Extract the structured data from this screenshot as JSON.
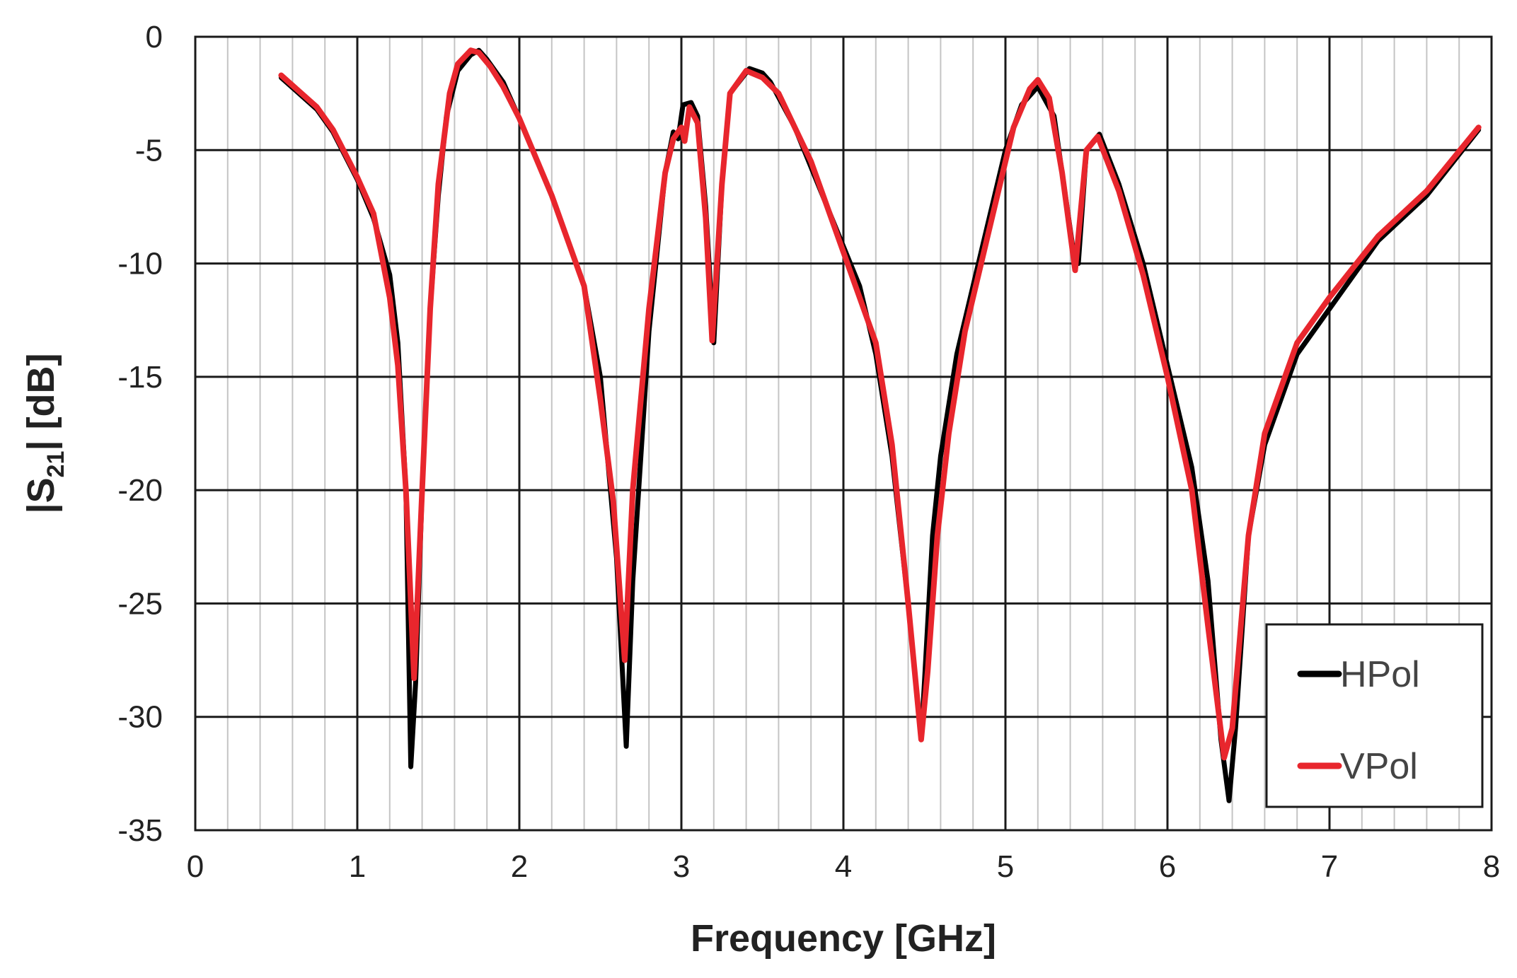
{
  "chart_data": {
    "type": "line",
    "xlabel": "Frequency [GHz]",
    "ylabel_main": "|S",
    "ylabel_sub": "21",
    "ylabel_rest": "| [dB]",
    "xlim": [
      0,
      8
    ],
    "ylim": [
      -35,
      0
    ],
    "x_ticks": [
      0,
      1,
      2,
      3,
      4,
      5,
      6,
      7,
      8
    ],
    "y_ticks": [
      0,
      -5,
      -10,
      -15,
      -20,
      -25,
      -30,
      -35
    ],
    "x_tick_labels": [
      "0",
      "1",
      "2",
      "3",
      "4",
      "5",
      "6",
      "7",
      "8"
    ],
    "y_tick_labels": [
      "0",
      "-5",
      "-10",
      "-15",
      "-20",
      "-25",
      "-30",
      "-35"
    ],
    "minor_x_step": 0.2,
    "grid": true,
    "legend_position": "bottom-right",
    "series": [
      {
        "name": "HPol",
        "color": "#000000",
        "points": [
          [
            0.53,
            -1.8
          ],
          [
            0.75,
            -3.2
          ],
          [
            0.85,
            -4.2
          ],
          [
            1.0,
            -6.3
          ],
          [
            1.1,
            -8.0
          ],
          [
            1.2,
            -10.5
          ],
          [
            1.25,
            -13.5
          ],
          [
            1.3,
            -20
          ],
          [
            1.33,
            -32.2
          ],
          [
            1.36,
            -28.5
          ],
          [
            1.4,
            -20
          ],
          [
            1.45,
            -12
          ],
          [
            1.5,
            -7
          ],
          [
            1.55,
            -3.5
          ],
          [
            1.62,
            -1.5
          ],
          [
            1.7,
            -0.8
          ],
          [
            1.75,
            -0.6
          ],
          [
            1.8,
            -1.0
          ],
          [
            1.9,
            -2.0
          ],
          [
            2.0,
            -3.6
          ],
          [
            2.2,
            -7.0
          ],
          [
            2.4,
            -11.0
          ],
          [
            2.5,
            -15
          ],
          [
            2.55,
            -19
          ],
          [
            2.6,
            -23
          ],
          [
            2.66,
            -31.3
          ],
          [
            2.7,
            -24
          ],
          [
            2.8,
            -13
          ],
          [
            2.9,
            -6
          ],
          [
            2.95,
            -4.2
          ],
          [
            2.98,
            -4.5
          ],
          [
            3.01,
            -3.0
          ],
          [
            3.06,
            -2.9
          ],
          [
            3.1,
            -3.5
          ],
          [
            3.15,
            -7.5
          ],
          [
            3.2,
            -13.5
          ],
          [
            3.25,
            -6.5
          ],
          [
            3.3,
            -2.5
          ],
          [
            3.42,
            -1.4
          ],
          [
            3.5,
            -1.6
          ],
          [
            3.55,
            -2.0
          ],
          [
            3.7,
            -4.0
          ],
          [
            3.9,
            -7.5
          ],
          [
            4.1,
            -11.0
          ],
          [
            4.2,
            -14.0
          ],
          [
            4.3,
            -18.5
          ],
          [
            4.4,
            -25
          ],
          [
            4.48,
            -31.0
          ],
          [
            4.5,
            -28.5
          ],
          [
            4.55,
            -22
          ],
          [
            4.6,
            -18.5
          ],
          [
            4.7,
            -14.0
          ],
          [
            4.85,
            -9.5
          ],
          [
            5.0,
            -5.0
          ],
          [
            5.1,
            -3.0
          ],
          [
            5.2,
            -2.2
          ],
          [
            5.3,
            -3.5
          ],
          [
            5.35,
            -6.0
          ],
          [
            5.42,
            -9.5
          ],
          [
            5.45,
            -10.0
          ],
          [
            5.5,
            -5.0
          ],
          [
            5.58,
            -4.3
          ],
          [
            5.7,
            -6.5
          ],
          [
            5.85,
            -10.0
          ],
          [
            6.0,
            -14.5
          ],
          [
            6.15,
            -19.0
          ],
          [
            6.25,
            -24.0
          ],
          [
            6.33,
            -31.0
          ],
          [
            6.38,
            -33.7
          ],
          [
            6.42,
            -30.5
          ],
          [
            6.5,
            -22.0
          ],
          [
            6.6,
            -18.0
          ],
          [
            6.8,
            -14.0
          ],
          [
            7.0,
            -12.0
          ],
          [
            7.3,
            -9.0
          ],
          [
            7.6,
            -7.0
          ],
          [
            7.92,
            -4.1
          ]
        ]
      },
      {
        "name": "VPol",
        "color": "#e8262d",
        "points": [
          [
            0.53,
            -1.7
          ],
          [
            0.75,
            -3.1
          ],
          [
            0.85,
            -4.1
          ],
          [
            1.0,
            -6.2
          ],
          [
            1.1,
            -7.8
          ],
          [
            1.2,
            -11.5
          ],
          [
            1.25,
            -14.5
          ],
          [
            1.3,
            -20
          ],
          [
            1.35,
            -28.3
          ],
          [
            1.4,
            -20
          ],
          [
            1.45,
            -12
          ],
          [
            1.5,
            -6.5
          ],
          [
            1.57,
            -2.5
          ],
          [
            1.62,
            -1.2
          ],
          [
            1.7,
            -0.6
          ],
          [
            1.75,
            -0.7
          ],
          [
            1.82,
            -1.3
          ],
          [
            1.9,
            -2.2
          ],
          [
            2.0,
            -3.6
          ],
          [
            2.2,
            -7.0
          ],
          [
            2.4,
            -11.0
          ],
          [
            2.5,
            -16.0
          ],
          [
            2.58,
            -20.5
          ],
          [
            2.65,
            -27.5
          ],
          [
            2.7,
            -20
          ],
          [
            2.8,
            -12
          ],
          [
            2.9,
            -6
          ],
          [
            2.95,
            -4.5
          ],
          [
            3.0,
            -4.0
          ],
          [
            3.02,
            -4.6
          ],
          [
            3.05,
            -3.1
          ],
          [
            3.1,
            -3.8
          ],
          [
            3.15,
            -8.0
          ],
          [
            3.19,
            -13.4
          ],
          [
            3.25,
            -6.5
          ],
          [
            3.3,
            -2.5
          ],
          [
            3.4,
            -1.5
          ],
          [
            3.5,
            -1.8
          ],
          [
            3.6,
            -2.5
          ],
          [
            3.8,
            -5.5
          ],
          [
            4.0,
            -9.5
          ],
          [
            4.2,
            -13.5
          ],
          [
            4.3,
            -18.0
          ],
          [
            4.4,
            -25.0
          ],
          [
            4.48,
            -31.0
          ],
          [
            4.52,
            -28.0
          ],
          [
            4.58,
            -22.0
          ],
          [
            4.65,
            -17.5
          ],
          [
            4.75,
            -13.0
          ],
          [
            4.9,
            -8.5
          ],
          [
            5.05,
            -4.0
          ],
          [
            5.15,
            -2.3
          ],
          [
            5.2,
            -1.9
          ],
          [
            5.27,
            -2.7
          ],
          [
            5.35,
            -6.0
          ],
          [
            5.43,
            -10.3
          ],
          [
            5.5,
            -5.0
          ],
          [
            5.57,
            -4.4
          ],
          [
            5.7,
            -6.8
          ],
          [
            5.85,
            -10.5
          ],
          [
            6.0,
            -15.0
          ],
          [
            6.15,
            -20.0
          ],
          [
            6.25,
            -26.0
          ],
          [
            6.35,
            -31.8
          ],
          [
            6.4,
            -30.5
          ],
          [
            6.5,
            -22.0
          ],
          [
            6.6,
            -17.5
          ],
          [
            6.8,
            -13.5
          ],
          [
            7.0,
            -11.5
          ],
          [
            7.3,
            -8.8
          ],
          [
            7.6,
            -6.8
          ],
          [
            7.92,
            -4.0
          ]
        ]
      }
    ]
  }
}
